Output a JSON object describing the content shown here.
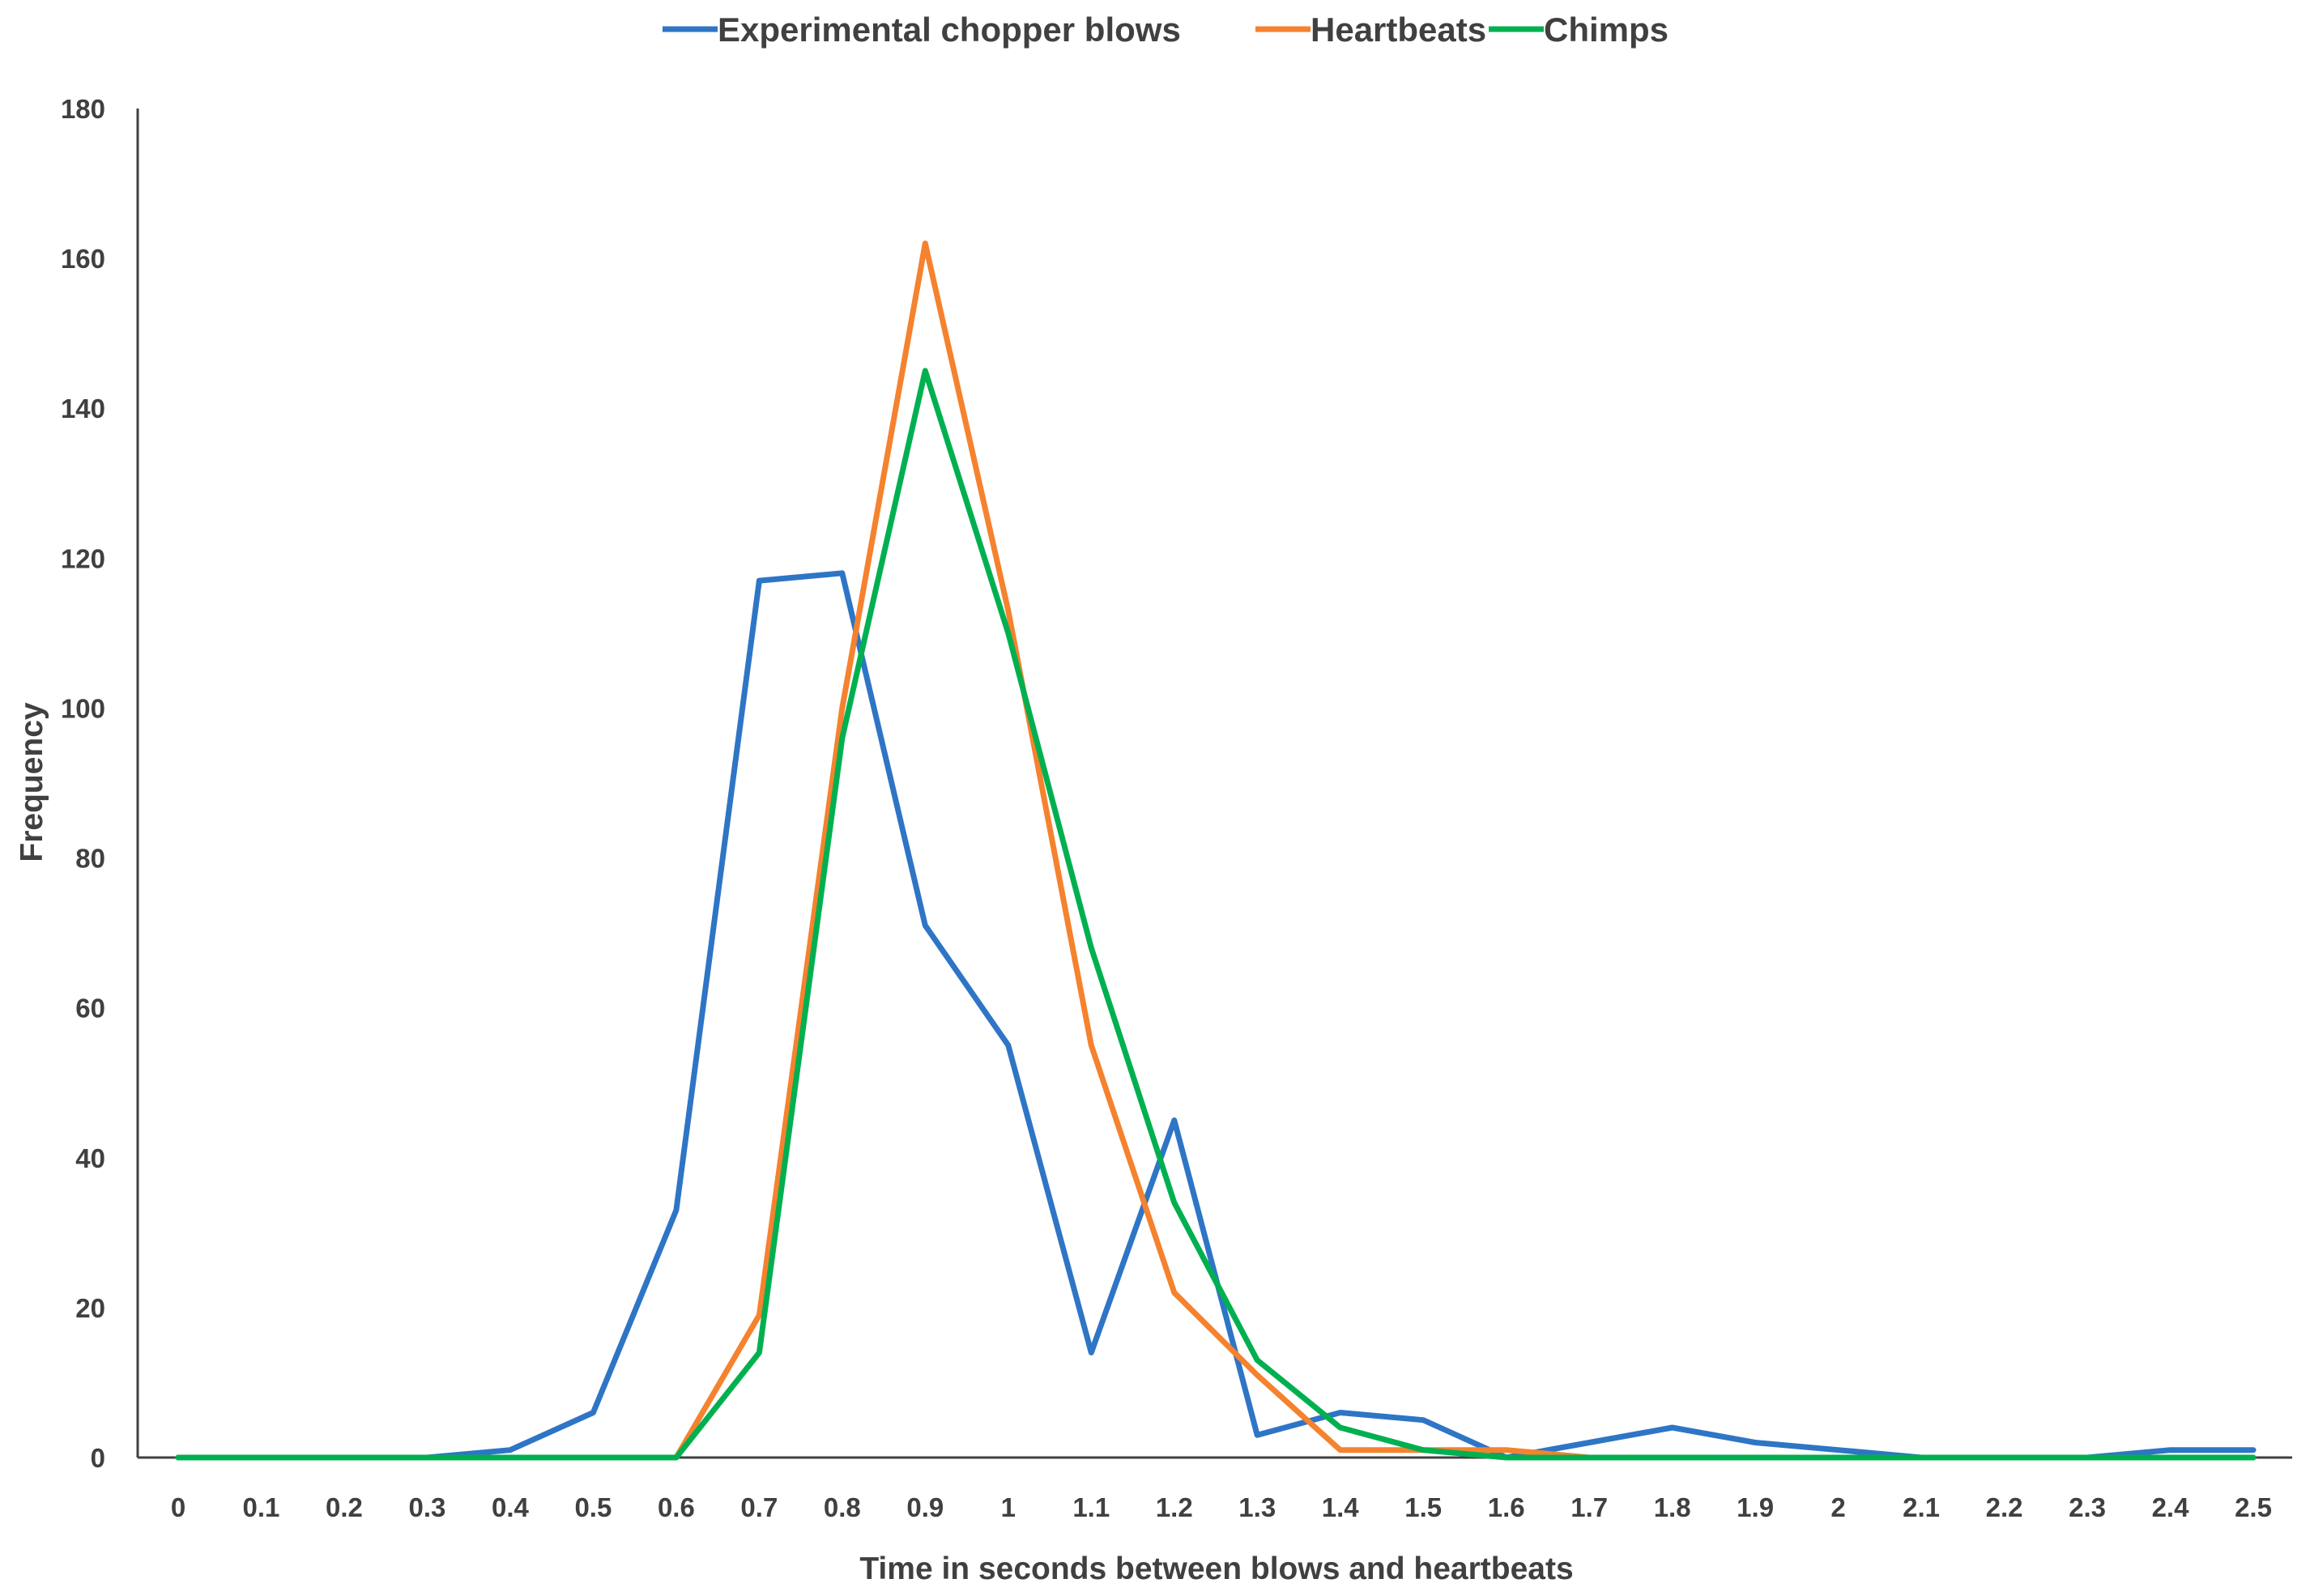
{
  "chart_data": {
    "type": "line",
    "title": "",
    "xlabel": "Time in seconds between blows  and heartbeats",
    "ylabel": "Frequency",
    "x": [
      0,
      0.1,
      0.2,
      0.3,
      0.4,
      0.5,
      0.6,
      0.7,
      0.8,
      0.9,
      1,
      1.1,
      1.2,
      1.3,
      1.4,
      1.5,
      1.6,
      1.7,
      1.8,
      1.9,
      2,
      2.1,
      2.2,
      2.3,
      2.4,
      2.5
    ],
    "x_tick_labels": [
      "0",
      "0.1",
      "0.2",
      "0.3",
      "0.4",
      "0.5",
      "0.6",
      "0.7",
      "0.8",
      "0.9",
      "1",
      "1.1",
      "1.2",
      "1.3",
      "1.4",
      "1.5",
      "1.6",
      "1.7",
      "1.8",
      "1.9",
      "2",
      "2.1",
      "2.2",
      "2.3",
      "2.4",
      "2.5"
    ],
    "y_ticks": [
      0,
      20,
      40,
      60,
      80,
      100,
      120,
      140,
      160,
      180
    ],
    "ylim": [
      0,
      180
    ],
    "grid": false,
    "legend_position": "top",
    "series": [
      {
        "name": "Experimental chopper blows",
        "color": "#2E75C6",
        "values": [
          0,
          0,
          0,
          0,
          1,
          6,
          33,
          117,
          118,
          71,
          55,
          14,
          45,
          3,
          6,
          5,
          0,
          2,
          4,
          2,
          1,
          0,
          0,
          0,
          1,
          1
        ]
      },
      {
        "name": "Heartbeats",
        "color": "#F5822E",
        "values": [
          0,
          0,
          0,
          0,
          0,
          0,
          0,
          19,
          100,
          162,
          113,
          55,
          22,
          11,
          1,
          1,
          1,
          0,
          0,
          0,
          0,
          0,
          0,
          0,
          0,
          0
        ]
      },
      {
        "name": "Chimps",
        "color": "#00B050",
        "values": [
          0,
          0,
          0,
          0,
          0,
          0,
          0,
          14,
          96,
          145,
          110,
          68,
          34,
          13,
          4,
          1,
          0,
          0,
          0,
          0,
          0,
          0,
          0,
          0,
          0,
          0
        ]
      }
    ]
  }
}
